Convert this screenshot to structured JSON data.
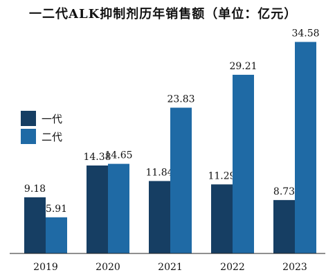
{
  "chart_data": {
    "type": "bar",
    "title": "一二代ALK抑制剂历年销售额（单位：亿元）",
    "categories": [
      "2019",
      "2020",
      "2021",
      "2022",
      "2023"
    ],
    "series": [
      {
        "name": "一代",
        "values": [
          9.18,
          14.38,
          11.84,
          11.29,
          8.73
        ],
        "color": "#163e63"
      },
      {
        "name": "二代",
        "values": [
          5.91,
          14.65,
          23.83,
          29.21,
          34.58
        ],
        "color": "#1f6aa5"
      }
    ],
    "value_labels": {
      "一代": [
        "9.18",
        "14.38",
        "11.84",
        "11.29",
        "8.73"
      ],
      "二代": [
        "5.91",
        "14.65",
        "23.83",
        "29.21",
        "34.58"
      ]
    },
    "ylim": [
      0,
      36
    ],
    "grid": false,
    "legend": "left"
  }
}
